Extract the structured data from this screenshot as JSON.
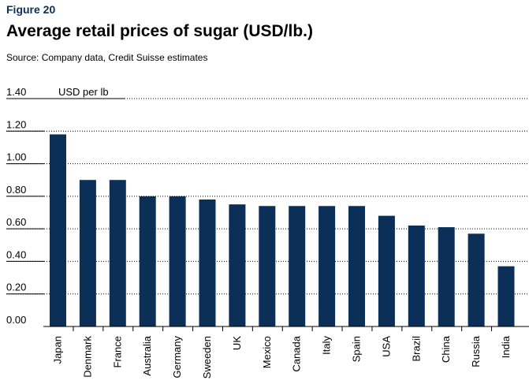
{
  "figure_label": "Figure 20",
  "title": "Average retail prices of sugar (USD/lb.)",
  "source": "Source: Company data, Credit Suisse estimates",
  "colors": {
    "bar": "#0b2f57",
    "grid": "#000000",
    "accent": "#0b2f57"
  },
  "chart_data": {
    "type": "bar",
    "title": "Average retail prices of sugar (USD/lb.)",
    "unit_label": "USD per lb",
    "xlabel": "",
    "ylabel": "",
    "ylim": [
      0,
      1.4
    ],
    "yticks": [
      "0.00",
      "0.20",
      "0.40",
      "0.60",
      "0.80",
      "1.00",
      "1.20",
      "1.40"
    ],
    "ytick_values": [
      0,
      0.2,
      0.4,
      0.6,
      0.8,
      1.0,
      1.2,
      1.4
    ],
    "grid": "horizontal-dashed",
    "categories": [
      "Japan",
      "Denmark",
      "France",
      "Australia",
      "Germany",
      "Sweeden",
      "UK",
      "Mexico",
      "Canada",
      "Italy",
      "Spain",
      "USA",
      "Brazil",
      "China",
      "Russia",
      "India"
    ],
    "values": [
      1.18,
      0.9,
      0.9,
      0.8,
      0.8,
      0.78,
      0.75,
      0.74,
      0.74,
      0.74,
      0.74,
      0.68,
      0.62,
      0.61,
      0.57,
      0.37
    ]
  }
}
